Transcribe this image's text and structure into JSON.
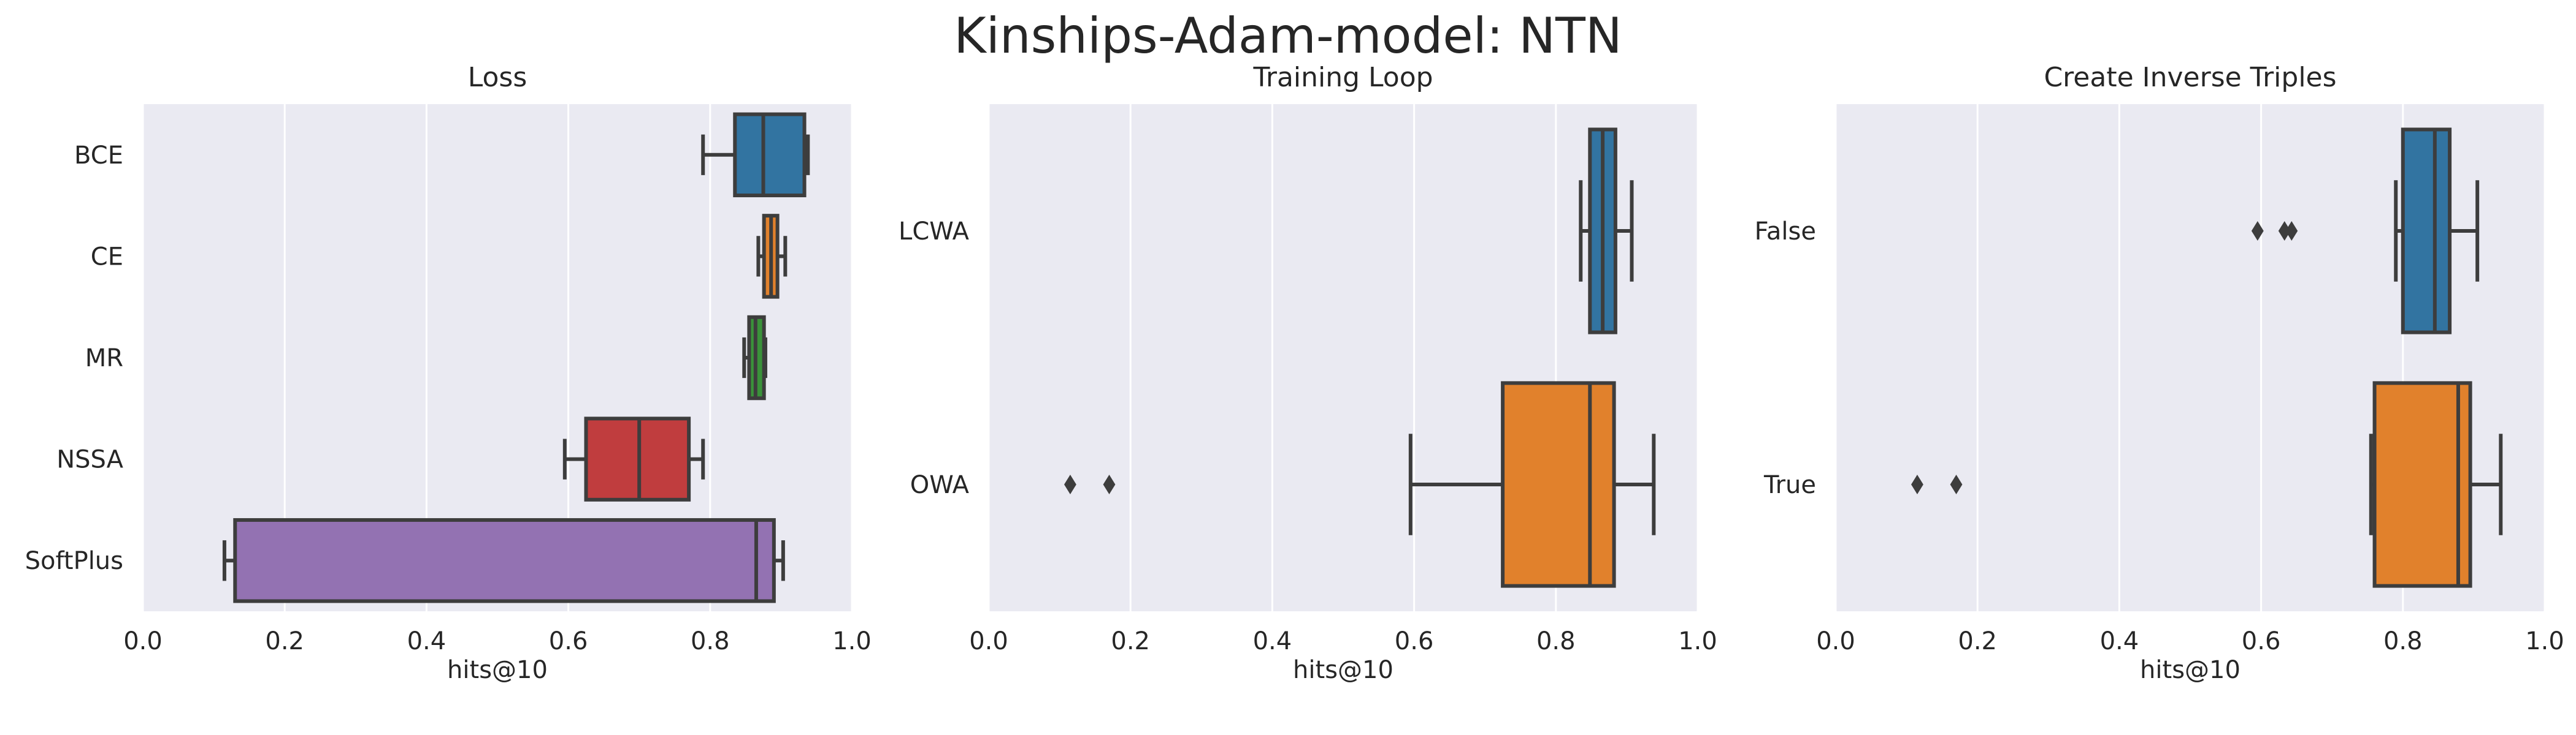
{
  "figure": {
    "title": "Kinships-Adam-model: NTN"
  },
  "chart_data": [
    {
      "type": "box",
      "orientation": "horizontal",
      "title": "Loss",
      "xlabel": "hits@10",
      "ylabel": "",
      "xlim": [
        0,
        1
      ],
      "xticks": [
        "0.0",
        "0.2",
        "0.4",
        "0.6",
        "0.8",
        "1.0"
      ],
      "grid": true,
      "categories": [
        "BCE",
        "CE",
        "MR",
        "NSSA",
        "SoftPlus"
      ],
      "boxes": [
        {
          "label": "BCE",
          "whislo": 0.79,
          "q1": 0.835,
          "med": 0.875,
          "q3": 0.933,
          "whishi": 0.938,
          "fliers": [],
          "color": "#3274a1"
        },
        {
          "label": "CE",
          "whislo": 0.868,
          "q1": 0.876,
          "med": 0.886,
          "q3": 0.895,
          "whishi": 0.906,
          "fliers": [],
          "color": "#e1812c"
        },
        {
          "label": "MR",
          "whislo": 0.848,
          "q1": 0.855,
          "med": 0.864,
          "q3": 0.876,
          "whishi": 0.878,
          "fliers": [],
          "color": "#3a923a"
        },
        {
          "label": "NSSA",
          "whislo": 0.595,
          "q1": 0.625,
          "med": 0.7,
          "q3": 0.77,
          "whishi": 0.79,
          "fliers": [],
          "color": "#c03d3e"
        },
        {
          "label": "SoftPlus",
          "whislo": 0.115,
          "q1": 0.13,
          "med": 0.865,
          "q3": 0.89,
          "whishi": 0.903,
          "fliers": [],
          "color": "#9372b2"
        }
      ]
    },
    {
      "type": "box",
      "orientation": "horizontal",
      "title": "Training Loop",
      "xlabel": "hits@10",
      "ylabel": "",
      "xlim": [
        0,
        1
      ],
      "xticks": [
        "0.0",
        "0.2",
        "0.4",
        "0.6",
        "0.8",
        "1.0"
      ],
      "grid": true,
      "categories": [
        "LCWA",
        "OWA"
      ],
      "boxes": [
        {
          "label": "LCWA",
          "whislo": 0.835,
          "q1": 0.848,
          "med": 0.866,
          "q3": 0.884,
          "whishi": 0.907,
          "fliers": [],
          "color": "#3274a1"
        },
        {
          "label": "OWA",
          "whislo": 0.595,
          "q1": 0.725,
          "med": 0.848,
          "q3": 0.882,
          "whishi": 0.938,
          "fliers": [
            0.115,
            0.17
          ],
          "color": "#e1812c"
        }
      ]
    },
    {
      "type": "box",
      "orientation": "horizontal",
      "title": "Create Inverse Triples",
      "xlabel": "hits@10",
      "ylabel": "",
      "xlim": [
        0,
        1
      ],
      "xticks": [
        "0.0",
        "0.2",
        "0.4",
        "0.6",
        "0.8",
        "1.0"
      ],
      "grid": true,
      "categories": [
        "False",
        "True"
      ],
      "boxes": [
        {
          "label": "False",
          "whislo": 0.79,
          "q1": 0.8,
          "med": 0.845,
          "q3": 0.866,
          "whishi": 0.905,
          "fliers": [
            0.595,
            0.633,
            0.643
          ],
          "color": "#3274a1"
        },
        {
          "label": "True",
          "whislo": 0.755,
          "q1": 0.76,
          "med": 0.878,
          "q3": 0.895,
          "whishi": 0.938,
          "fliers": [
            0.115,
            0.17
          ],
          "color": "#e1812c"
        }
      ]
    }
  ]
}
